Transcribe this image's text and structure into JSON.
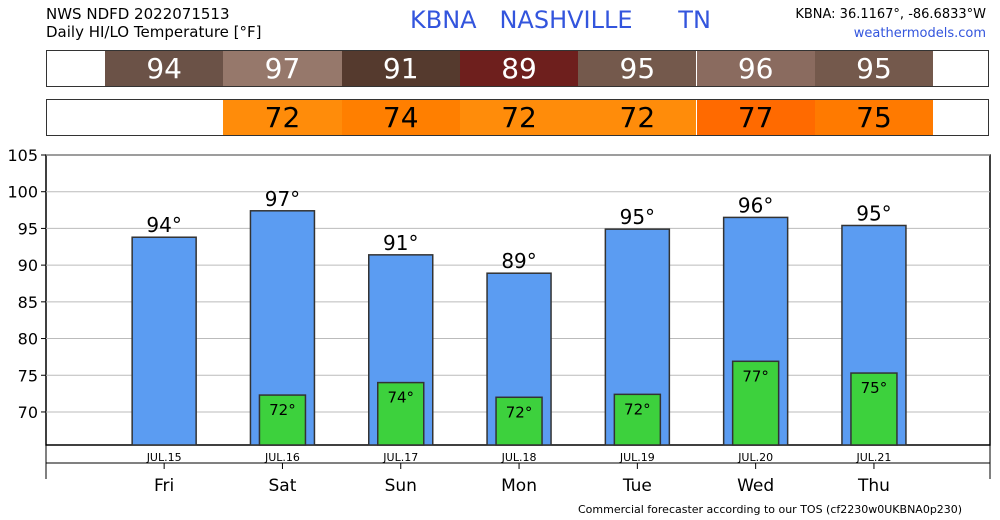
{
  "header": {
    "line1": "NWS NDFD 2022071513",
    "line2": "Daily HI/LO Temperature [°F]",
    "station": "KBNA   NASHVILLE      TN",
    "coords": "KBNA: 36.1167°, -86.6833°W",
    "site": "weathermodels.com"
  },
  "hi_strip": [
    {
      "text": "94",
      "color": "#6b5247"
    },
    {
      "text": "97",
      "color": "#96786b"
    },
    {
      "text": "91",
      "color": "#553a2e"
    },
    {
      "text": "89",
      "color": "#6e1f1d"
    },
    {
      "text": "95",
      "color": "#74594c"
    },
    {
      "text": "96",
      "color": "#8a6b5f"
    },
    {
      "text": "95",
      "color": "#74594c"
    }
  ],
  "lo_strip": [
    {
      "text": "",
      "color": "#ffffff"
    },
    {
      "text": "72",
      "color": "#ff8c0a"
    },
    {
      "text": "74",
      "color": "#ff7f00"
    },
    {
      "text": "72",
      "color": "#ff8c0a"
    },
    {
      "text": "72",
      "color": "#ff8c0a"
    },
    {
      "text": "77",
      "color": "#ff6a00"
    },
    {
      "text": "75",
      "color": "#ff7a00"
    }
  ],
  "chart_data": {
    "type": "bar",
    "categories": [
      "JUL.15",
      "JUL.16",
      "JUL.17",
      "JUL.18",
      "JUL.19",
      "JUL.20",
      "JUL.21"
    ],
    "days": [
      "Fri",
      "Sat",
      "Sun",
      "Mon",
      "Tue",
      "Wed",
      "Thu"
    ],
    "series": [
      {
        "name": "HI",
        "values": [
          93.8,
          97.4,
          91.4,
          88.9,
          94.9,
          96.5,
          95.4
        ],
        "labels": [
          "94°",
          "97°",
          "91°",
          "89°",
          "95°",
          "96°",
          "95°"
        ],
        "color": "#5b9cf2"
      },
      {
        "name": "LO",
        "values": [
          null,
          72.3,
          74.0,
          72.0,
          72.4,
          76.9,
          75.3
        ],
        "labels": [
          "",
          "72°",
          "74°",
          "72°",
          "72°",
          "77°",
          "75°"
        ],
        "color": "#3dd13d"
      }
    ],
    "ylim": [
      65.5,
      105
    ],
    "yticks": [
      70,
      75,
      80,
      85,
      90,
      95,
      100,
      105
    ],
    "grid": true
  },
  "footer": "Commercial forecaster according to our TOS (cf2230w0UKBNA0p230)"
}
